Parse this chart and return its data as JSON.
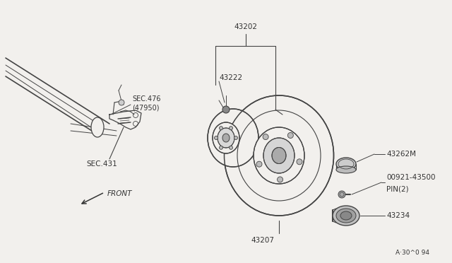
{
  "bg_color": "#f2f0ed",
  "line_color": "#444444",
  "text_color": "#333333",
  "watermark": "A·30^0 94",
  "label_43202": "43202",
  "label_43222": "43222",
  "label_sec476": "SEC.476\n(47950)",
  "label_sec431": "SEC.431",
  "label_43207": "43207",
  "label_43262M": "43262M",
  "label_00921": "00921-43500\nPIN(2)",
  "label_43234": "43234",
  "label_front": "FRONT"
}
